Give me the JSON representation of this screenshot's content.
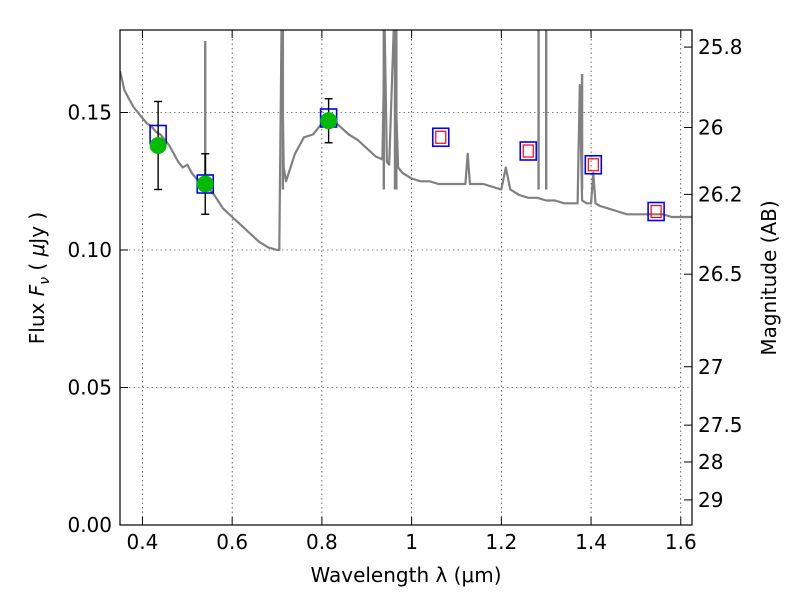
{
  "chart_data": {
    "type": "scatter",
    "xlabel": "Wavelength  λ (μm)",
    "ylabel": "Flux  F_ν  ( μJy )",
    "ylabel_parts": [
      "Flux  ",
      "F",
      "ν",
      "  ( ",
      "μ",
      "Jy )"
    ],
    "y2label": "Magnitude (AB)",
    "xlim": [
      0.35,
      1.625
    ],
    "ylim": [
      0.0,
      0.18
    ],
    "grid": true,
    "x_ticks": [
      {
        "value": 0.4,
        "label": "0.4"
      },
      {
        "value": 0.6,
        "label": "0.6"
      },
      {
        "value": 0.8,
        "label": "0.8"
      },
      {
        "value": 1.0,
        "label": "1"
      },
      {
        "value": 1.2,
        "label": "1.2"
      },
      {
        "value": 1.4,
        "label": "1.4"
      },
      {
        "value": 1.6,
        "label": "1.6"
      }
    ],
    "y_ticks": [
      {
        "value": 0.0,
        "label": "0.00"
      },
      {
        "value": 0.05,
        "label": "0.05"
      },
      {
        "value": 0.1,
        "label": "0.10"
      },
      {
        "value": 0.15,
        "label": "0.15"
      }
    ],
    "y2_ticks": [
      {
        "value": 25.8,
        "label": "25.8"
      },
      {
        "value": 26.0,
        "label": "26"
      },
      {
        "value": 26.2,
        "label": "26.2"
      },
      {
        "value": 26.5,
        "label": "26.5"
      },
      {
        "value": 27.0,
        "label": "27"
      },
      {
        "value": 27.5,
        "label": "27.5"
      },
      {
        "value": 28.0,
        "label": "28"
      },
      {
        "value": 29.0,
        "label": "29"
      }
    ],
    "series": [
      {
        "kind": "line",
        "color": "#808080",
        "x": [
          0.35,
          0.36,
          0.37,
          0.38,
          0.39,
          0.4,
          0.41,
          0.42,
          0.43,
          0.44,
          0.45,
          0.46,
          0.47,
          0.48,
          0.49,
          0.5,
          0.51,
          0.52,
          0.53,
          0.54,
          0.55,
          0.56,
          0.58,
          0.6,
          0.62,
          0.64,
          0.66,
          0.68,
          0.7,
          0.705,
          0.71,
          0.715,
          0.72,
          0.73,
          0.74,
          0.75,
          0.76,
          0.78,
          0.8,
          0.82,
          0.84,
          0.86,
          0.88,
          0.9,
          0.92,
          0.935,
          0.94,
          0.945,
          0.95,
          0.96,
          0.97,
          0.98,
          1.0,
          1.02,
          1.04,
          1.06,
          1.08,
          1.1,
          1.12,
          1.125,
          1.13,
          1.14,
          1.16,
          1.18,
          1.2,
          1.21,
          1.22,
          1.23,
          1.24,
          1.26,
          1.28,
          1.3,
          1.32,
          1.34,
          1.36,
          1.37,
          1.375,
          1.38,
          1.39,
          1.4,
          1.405,
          1.41,
          1.42,
          1.44,
          1.46,
          1.48,
          1.5,
          1.52,
          1.54,
          1.56,
          1.58,
          1.6,
          1.625
        ],
        "y": [
          0.165,
          0.158,
          0.155,
          0.152,
          0.15,
          0.148,
          0.146,
          0.145,
          0.143,
          0.142,
          0.14,
          0.138,
          0.135,
          0.132,
          0.13,
          0.131,
          0.128,
          0.126,
          0.125,
          0.124,
          0.122,
          0.12,
          0.115,
          0.112,
          0.109,
          0.106,
          0.103,
          0.101,
          0.1,
          0.1,
          0.18,
          0.13,
          0.125,
          0.13,
          0.135,
          0.138,
          0.141,
          0.142,
          0.146,
          0.148,
          0.145,
          0.142,
          0.14,
          0.137,
          0.134,
          0.133,
          0.18,
          0.132,
          0.131,
          0.18,
          0.13,
          0.128,
          0.126,
          0.125,
          0.125,
          0.124,
          0.124,
          0.124,
          0.124,
          0.135,
          0.124,
          0.124,
          0.124,
          0.123,
          0.122,
          0.13,
          0.122,
          0.121,
          0.12,
          0.119,
          0.119,
          0.118,
          0.118,
          0.117,
          0.117,
          0.117,
          0.16,
          0.118,
          0.117,
          0.117,
          0.128,
          0.117,
          0.116,
          0.115,
          0.114,
          0.113,
          0.113,
          0.113,
          0.113,
          0.113,
          0.112,
          0.112,
          0.112
        ]
      },
      {
        "kind": "model-squares-blue",
        "color": "#0000ff",
        "x": [
          0.435,
          0.54,
          0.815,
          1.065,
          1.26,
          1.405,
          1.545
        ],
        "y": [
          0.142,
          0.124,
          0.148,
          0.141,
          0.136,
          0.131,
          0.114
        ]
      },
      {
        "kind": "model-squares-red",
        "color": "#ff0000",
        "x": [
          1.065,
          1.26,
          1.405,
          1.545
        ],
        "y": [
          0.141,
          0.136,
          0.131,
          0.114
        ]
      },
      {
        "kind": "observed",
        "color": "#00bb00",
        "x": [
          0.435,
          0.54,
          0.815
        ],
        "y": [
          0.138,
          0.124,
          0.147
        ],
        "yerr": [
          0.016,
          0.011,
          0.008
        ]
      }
    ],
    "spikes": [
      {
        "x": 0.54,
        "y_top": 0.176
      },
      {
        "x": 0.713,
        "y_top": 0.18
      },
      {
        "x": 0.938,
        "y_top": 0.18
      },
      {
        "x": 0.963,
        "y_top": 0.18
      },
      {
        "x": 0.966,
        "y_top": 0.18
      },
      {
        "x": 1.283,
        "y_top": 0.18
      },
      {
        "x": 1.3,
        "y_top": 0.18
      },
      {
        "x": 1.38,
        "y_top": 0.164
      }
    ]
  }
}
